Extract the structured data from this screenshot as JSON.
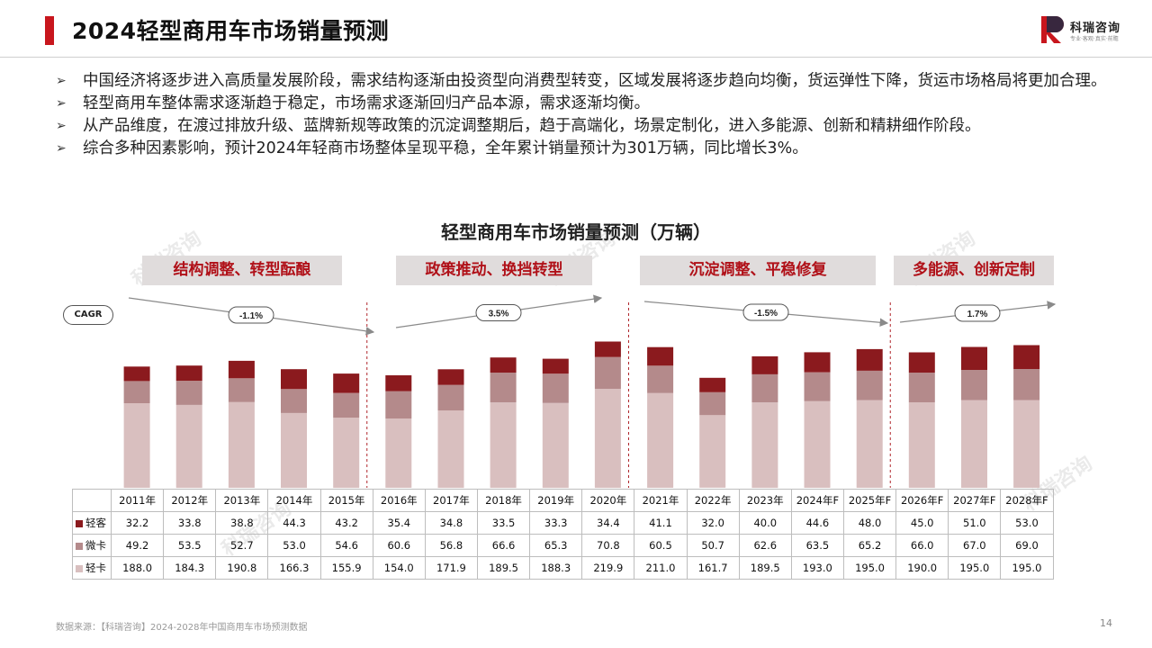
{
  "header": {
    "title": "2024轻型商用车市场销量预测",
    "logo_name": "科瑞咨询",
    "logo_sub": "专业·客观·真实·前瞻"
  },
  "bullets": [
    "中国经济将逐步进入高质量发展阶段，需求结构逐渐由投资型向消费型转变，区域发展将逐步趋向均衡，货运弹性下降，货运市场格局将更加合理。",
    "轻型商用车整体需求逐渐趋于稳定，市场需求逐渐回归产品本源，需求逐渐均衡。",
    "从产品维度，在渡过排放升级、蓝牌新规等政策的沉淀调整期后，趋于高端化，场景定制化，进入多能源、创新和精耕细作阶段。",
    "综合多种因素影响，预计2024年轻商市场整体呈现平稳，全年累计销量预计为301万辆，同比增长3%。"
  ],
  "bullet_marker": "➢",
  "watermark_text": "科瑞咨询",
  "phases": [
    {
      "label": "结构调整、转型酝酿",
      "cagr": "-1.1%"
    },
    {
      "label": "政策推动、换挡转型",
      "cagr": "3.5%"
    },
    {
      "label": "沉淀调整、平稳修复",
      "cagr": "-1.5%"
    },
    {
      "label": "多能源、创新定制",
      "cagr": "1.7%"
    }
  ],
  "cagr_label": "CAGR",
  "chart_data": {
    "type": "bar",
    "stacked": true,
    "title": "轻型商用车市场销量预测（万辆）",
    "categories": [
      "2011年",
      "2012年",
      "2013年",
      "2014年",
      "2015年",
      "2016年",
      "2017年",
      "2018年",
      "2019年",
      "2020年",
      "2021年",
      "2022年",
      "2023年",
      "2024年F",
      "2025年F",
      "2026年F",
      "2027年F",
      "2028年F"
    ],
    "series": [
      {
        "name": "轻卡",
        "color": "#d9bfbf",
        "values": [
          188.0,
          184.3,
          190.8,
          166.3,
          155.9,
          154.0,
          171.9,
          189.5,
          188.3,
          219.9,
          211.0,
          161.7,
          189.5,
          193.0,
          195.0,
          190.0,
          195.0,
          195.0
        ]
      },
      {
        "name": "微卡",
        "color": "#b48a8b",
        "values": [
          49.2,
          53.5,
          52.7,
          53.0,
          54.6,
          60.6,
          56.8,
          66.6,
          65.3,
          70.8,
          60.5,
          50.7,
          62.6,
          63.5,
          65.2,
          66.0,
          67.0,
          69.0
        ]
      },
      {
        "name": "轻客",
        "color": "#8b1a1e",
        "values": [
          32.2,
          33.8,
          38.8,
          44.3,
          43.2,
          35.4,
          34.8,
          33.5,
          33.3,
          34.4,
          41.1,
          32.0,
          40.0,
          44.6,
          48.0,
          45.0,
          51.0,
          53.0
        ]
      }
    ],
    "table_rows_order": [
      "轻客",
      "微卡",
      "轻卡"
    ],
    "grid": false,
    "legend": "table"
  },
  "footer": {
    "source": "数据来源：【科瑞咨询】2024-2028年中国商用车市场预测数据",
    "page": "14"
  }
}
